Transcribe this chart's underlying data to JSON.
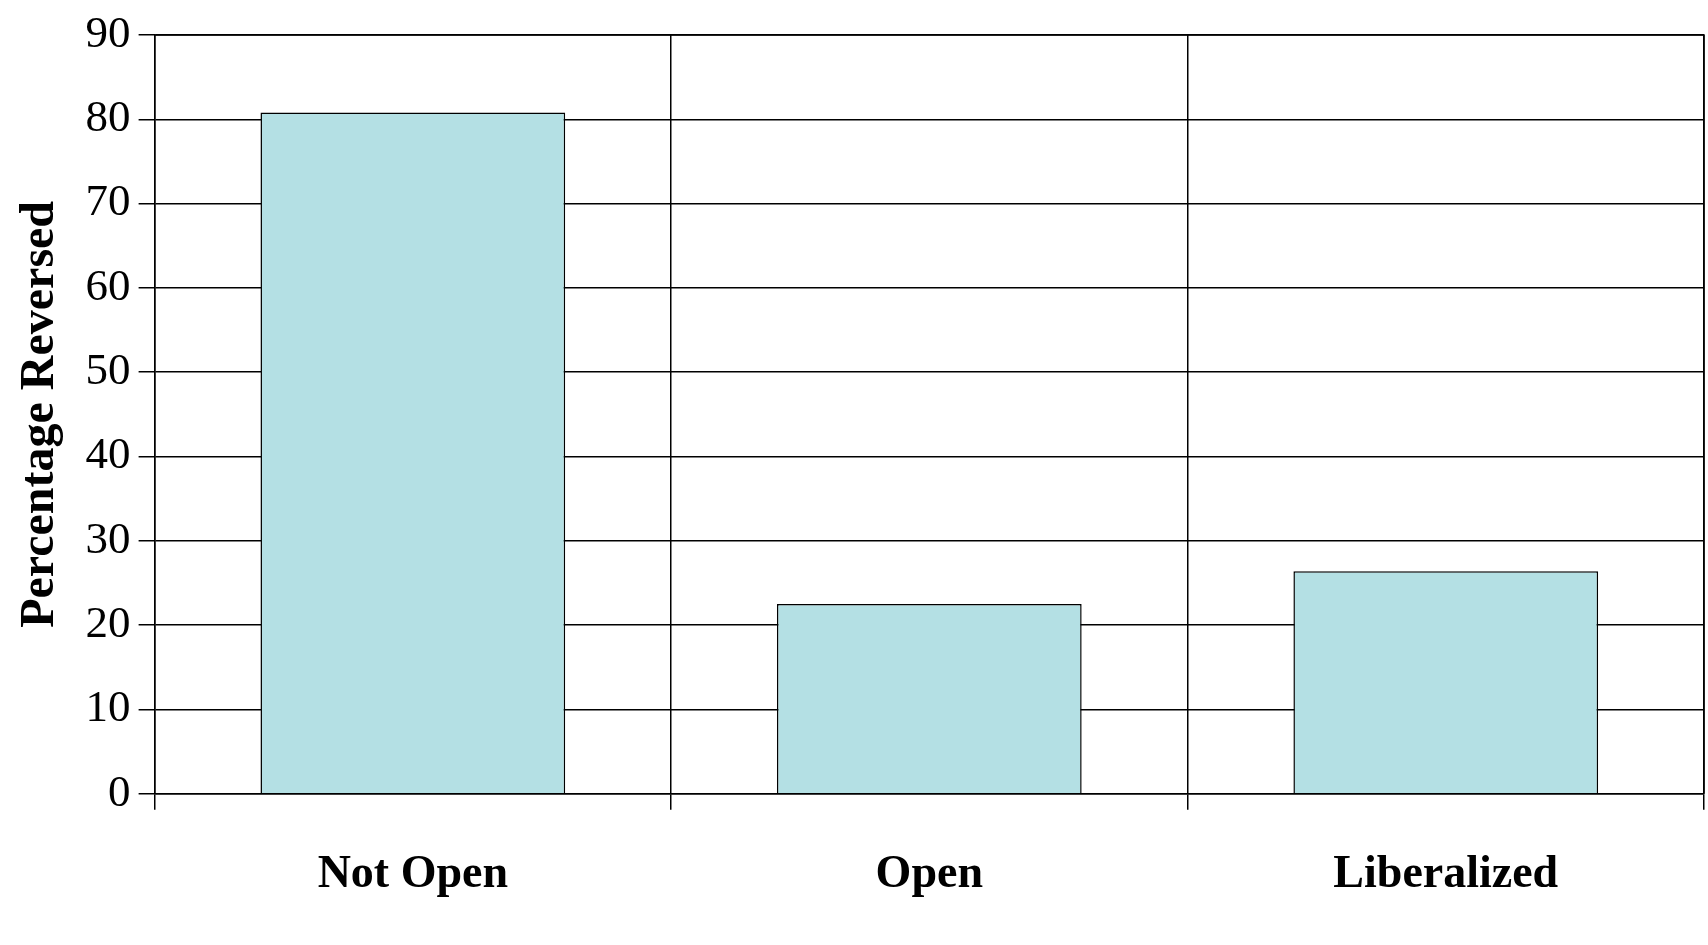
{
  "chart_data": {
    "type": "bar",
    "ylabel": "Percentage Reversed",
    "categories": [
      "Not Open",
      "Open",
      "Liberalized"
    ],
    "values": [
      80.8,
      22.5,
      26.4
    ],
    "color": "#b4e0e4",
    "ylim": [
      0,
      90
    ],
    "yticks": [
      0,
      10,
      20,
      30,
      40,
      50,
      60,
      70,
      80,
      90
    ],
    "grid": true
  }
}
